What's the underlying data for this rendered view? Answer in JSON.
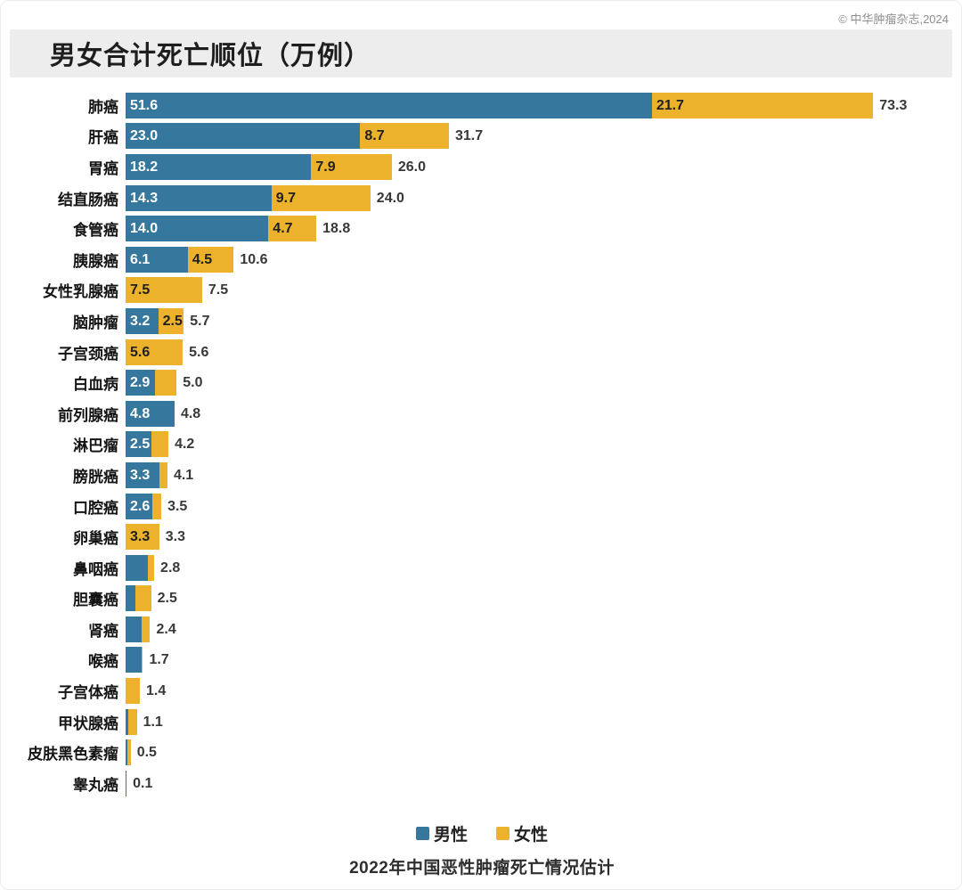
{
  "copyright": "© 中华肿瘤杂志,2024",
  "title": "男女合计死亡顺位（万例）",
  "legend": {
    "male": "男性",
    "female": "女性"
  },
  "caption": "2022年中国恶性肿瘤死亡情况估计",
  "chart_data": {
    "type": "bar",
    "orientation": "horizontal-stacked",
    "title": "男女合计死亡顺位（万例）",
    "subtitle": "2022年中国恶性肿瘤死亡情况估计",
    "unit": "万例",
    "legend_entries": [
      "男性",
      "女性"
    ],
    "legend_position": "bottom",
    "xlim": [
      0,
      75
    ],
    "grid": false,
    "colors": {
      "male": "#36779e",
      "female": "#ecb22c"
    },
    "segment_label_min": 2.5,
    "rows": [
      {
        "category": "肺癌",
        "male": 51.6,
        "female": 21.7,
        "total": "73.3"
      },
      {
        "category": "肝癌",
        "male": 23.0,
        "female": 8.7,
        "total": "31.7"
      },
      {
        "category": "胃癌",
        "male": 18.2,
        "female": 7.9,
        "total": "26.0"
      },
      {
        "category": "结直肠癌",
        "male": 14.3,
        "female": 9.7,
        "total": "24.0"
      },
      {
        "category": "食管癌",
        "male": 14.0,
        "female": 4.7,
        "total": "18.8"
      },
      {
        "category": "胰腺癌",
        "male": 6.1,
        "female": 4.5,
        "total": "10.6"
      },
      {
        "category": "女性乳腺癌",
        "male": null,
        "female": 7.5,
        "total": "7.5"
      },
      {
        "category": "脑肿瘤",
        "male": 3.2,
        "female": 2.5,
        "total": "5.7"
      },
      {
        "category": "子宫颈癌",
        "male": null,
        "female": 5.6,
        "total": "5.6"
      },
      {
        "category": "白血病",
        "male": 2.9,
        "female": 2.1,
        "total": "5.0"
      },
      {
        "category": "前列腺癌",
        "male": 4.8,
        "female": null,
        "total": "4.8"
      },
      {
        "category": "淋巴瘤",
        "male": 2.5,
        "female": 1.7,
        "total": "4.2"
      },
      {
        "category": "膀胱癌",
        "male": 3.3,
        "female": 0.8,
        "total": "4.1"
      },
      {
        "category": "口腔癌",
        "male": 2.6,
        "female": 0.9,
        "total": "3.5"
      },
      {
        "category": "卵巢癌",
        "male": null,
        "female": 3.3,
        "total": "3.3"
      },
      {
        "category": "鼻咽癌",
        "male": 2.2,
        "female": 0.6,
        "total": "2.8"
      },
      {
        "category": "胆囊癌",
        "male": 1.0,
        "female": 1.5,
        "total": "2.5"
      },
      {
        "category": "肾癌",
        "male": 1.6,
        "female": 0.8,
        "total": "2.4"
      },
      {
        "category": "喉癌",
        "male": 1.6,
        "female": 0.1,
        "total": "1.7"
      },
      {
        "category": "子宫体癌",
        "male": null,
        "female": 1.4,
        "total": "1.4"
      },
      {
        "category": "甲状腺癌",
        "male": 0.3,
        "female": 0.8,
        "total": "1.1"
      },
      {
        "category": "皮肤黑色素瘤",
        "male": 0.2,
        "female": 0.3,
        "total": "0.5"
      },
      {
        "category": "睾丸癌",
        "male": 0.1,
        "female": null,
        "total": "0.1"
      }
    ]
  }
}
